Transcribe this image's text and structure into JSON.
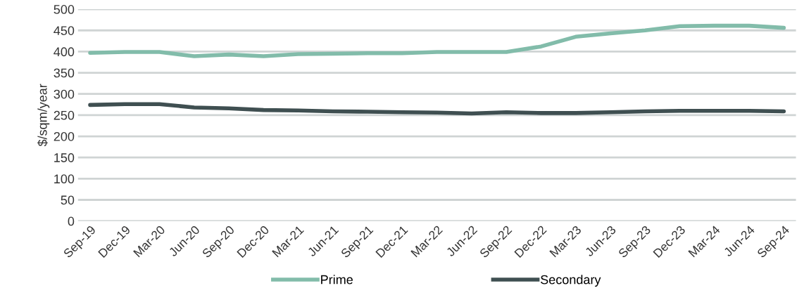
{
  "chart_data": {
    "type": "line",
    "ylabel": "$/sqm/year",
    "categories": [
      "Sep-19",
      "Dec-19",
      "Mar-20",
      "Jun-20",
      "Sep-20",
      "Dec-20",
      "Mar-21",
      "Jun-21",
      "Sep-21",
      "Dec-21",
      "Mar-22",
      "Jun-22",
      "Sep-22",
      "Dec-22",
      "Mar-23",
      "Jun-23",
      "Sep-23",
      "Dec-23",
      "Mar-24",
      "Jun-24",
      "Sep-24"
    ],
    "series": [
      {
        "name": "Prime",
        "color": "#82bcaa",
        "values": [
          397,
          399,
          399,
          389,
          393,
          389,
          394,
          395,
          396,
          396,
          399,
          399,
          399,
          412,
          435,
          443,
          450,
          460,
          461,
          461,
          456
        ]
      },
      {
        "name": "Secondary",
        "color": "#3f4f51",
        "values": [
          274,
          276,
          276,
          268,
          266,
          262,
          261,
          259,
          258,
          257,
          256,
          254,
          257,
          255,
          255,
          257,
          259,
          260,
          260,
          260,
          259
        ]
      }
    ],
    "ylim": [
      0,
      500
    ],
    "yticks": [
      0,
      50,
      100,
      150,
      200,
      250,
      300,
      350,
      400,
      450,
      500
    ],
    "grid": "y",
    "legend": "bottom",
    "marker": "none",
    "line_style": "solid"
  }
}
